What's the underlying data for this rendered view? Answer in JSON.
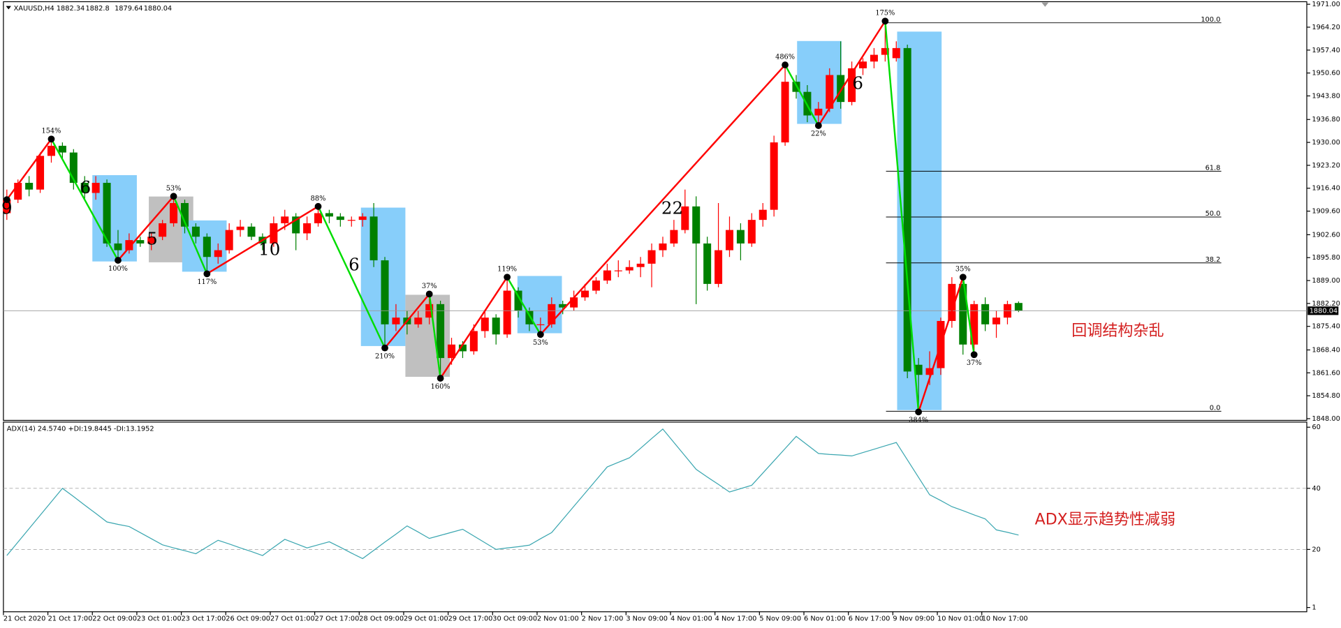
{
  "chart_data": [
    {
      "type": "candlestick",
      "symbol": "XAUUSD,H4",
      "ylim": [
        1848,
        1971
      ],
      "yticks": [
        {
          "value": 1971,
          "label": "1971.00"
        },
        {
          "value": 1964.2,
          "label": "1964.20"
        },
        {
          "value": 1957.4,
          "label": "1957.40"
        },
        {
          "value": 1950.6,
          "label": "1950.60"
        },
        {
          "value": 1943.8,
          "label": "1943.80"
        },
        {
          "value": 1936.8,
          "label": "1936.80"
        },
        {
          "value": 1930,
          "label": "1930.00"
        },
        {
          "value": 1923.2,
          "label": "1923.20"
        },
        {
          "value": 1916.4,
          "label": "1916.40"
        },
        {
          "value": 1909.6,
          "label": "1909.60"
        },
        {
          "value": 1902.6,
          "label": "1902.60"
        },
        {
          "value": 1895.8,
          "label": "1895.80"
        },
        {
          "value": 1889,
          "label": "1889.00"
        },
        {
          "value": 1882.2,
          "label": "1882.20"
        },
        {
          "value": 1875.4,
          "label": "1875.40"
        },
        {
          "value": 1868.4,
          "label": "1868.40"
        },
        {
          "value": 1861.6,
          "label": "1861.60"
        },
        {
          "value": 1854.8,
          "label": "1854.80"
        },
        {
          "value": 1848,
          "label": "1848.00"
        }
      ],
      "up_color": "#ff0000",
      "down_color": "#008000",
      "ohlc": [
        [
          1909,
          1916,
          1907,
          1913
        ],
        [
          1913,
          1919,
          1912,
          1918
        ],
        [
          1918,
          1920,
          1914,
          1916
        ],
        [
          1916,
          1927,
          1915,
          1926
        ],
        [
          1926,
          1931,
          1924,
          1929
        ],
        [
          1929,
          1930,
          1925,
          1927
        ],
        [
          1927,
          1928,
          1916,
          1918
        ],
        [
          1918,
          1920,
          1913,
          1915
        ],
        [
          1915,
          1920,
          1913,
          1918
        ],
        [
          1918,
          1919,
          1899,
          1900
        ],
        [
          1900,
          1904,
          1895,
          1898
        ],
        [
          1898,
          1903,
          1897,
          1901
        ],
        [
          1901,
          1902,
          1899,
          1900
        ],
        [
          1900,
          1903,
          1898,
          1902
        ],
        [
          1902,
          1907,
          1901,
          1906
        ],
        [
          1906,
          1914,
          1905,
          1912
        ],
        [
          1912,
          1913,
          1903,
          1905
        ],
        [
          1905,
          1906,
          1900,
          1902
        ],
        [
          1902,
          1903,
          1891,
          1896
        ],
        [
          1896,
          1900,
          1894,
          1898
        ],
        [
          1898,
          1906,
          1897,
          1904
        ],
        [
          1904,
          1907,
          1902,
          1905
        ],
        [
          1905,
          1906,
          1901,
          1902
        ],
        [
          1902,
          1903,
          1898,
          1900
        ],
        [
          1900,
          1908,
          1899,
          1906
        ],
        [
          1906,
          1910,
          1904,
          1908
        ],
        [
          1908,
          1909,
          1898,
          1903
        ],
        [
          1903,
          1908,
          1901,
          1906
        ],
        [
          1906,
          1911,
          1905,
          1909
        ],
        [
          1909,
          1910,
          1906,
          1908
        ],
        [
          1908,
          1909,
          1905,
          1907
        ],
        [
          1907,
          1908,
          1905,
          1907
        ],
        [
          1907,
          1909,
          1905,
          1908
        ],
        [
          1908,
          1912,
          1893,
          1895
        ],
        [
          1895,
          1896,
          1869,
          1876
        ],
        [
          1876,
          1882,
          1874,
          1878
        ],
        [
          1878,
          1880,
          1873,
          1876
        ],
        [
          1876,
          1880,
          1875,
          1878
        ],
        [
          1878,
          1885,
          1876,
          1882
        ],
        [
          1882,
          1883,
          1860,
          1866
        ],
        [
          1866,
          1872,
          1864,
          1870
        ],
        [
          1870,
          1871,
          1866,
          1868
        ],
        [
          1868,
          1876,
          1867,
          1874
        ],
        [
          1874,
          1880,
          1872,
          1878
        ],
        [
          1878,
          1879,
          1870,
          1873
        ],
        [
          1873,
          1890,
          1872,
          1886
        ],
        [
          1886,
          1887,
          1878,
          1880
        ],
        [
          1880,
          1881,
          1874,
          1876
        ],
        [
          1876,
          1878,
          1873,
          1876
        ],
        [
          1876,
          1884,
          1875,
          1882
        ],
        [
          1882,
          1883,
          1879,
          1881
        ],
        [
          1881,
          1886,
          1880,
          1884
        ],
        [
          1884,
          1888,
          1883,
          1886
        ],
        [
          1886,
          1890,
          1885,
          1889
        ],
        [
          1889,
          1894,
          1888,
          1892
        ],
        [
          1892,
          1895,
          1890,
          1892
        ],
        [
          1892,
          1895,
          1891,
          1893
        ],
        [
          1893,
          1896,
          1890,
          1894
        ],
        [
          1894,
          1900,
          1887,
          1898
        ],
        [
          1898,
          1902,
          1896,
          1900
        ],
        [
          1900,
          1907,
          1899,
          1904
        ],
        [
          1904,
          1916,
          1903,
          1911
        ],
        [
          1911,
          1914,
          1882,
          1900
        ],
        [
          1900,
          1902,
          1886,
          1888
        ],
        [
          1888,
          1912,
          1887,
          1898
        ],
        [
          1898,
          1908,
          1896,
          1904
        ],
        [
          1904,
          1906,
          1895,
          1900
        ],
        [
          1900,
          1909,
          1899,
          1907
        ],
        [
          1907,
          1912,
          1905,
          1910
        ],
        [
          1910,
          1932,
          1908,
          1930
        ],
        [
          1930,
          1953,
          1929,
          1948
        ],
        [
          1948,
          1950,
          1943,
          1945
        ],
        [
          1945,
          1947,
          1936,
          1938
        ],
        [
          1938,
          1942,
          1935,
          1940
        ],
        [
          1940,
          1952,
          1939,
          1950
        ],
        [
          1950,
          1960,
          1940,
          1942
        ],
        [
          1942,
          1954,
          1941,
          1952
        ],
        [
          1952,
          1955,
          1950,
          1954
        ],
        [
          1954,
          1958,
          1952,
          1956
        ],
        [
          1956,
          1966,
          1954,
          1958
        ],
        [
          1955,
          1960,
          1954,
          1958
        ],
        [
          1958,
          1959,
          1860,
          1862
        ],
        [
          1864,
          1866,
          1850,
          1861
        ],
        [
          1861,
          1868,
          1858,
          1863
        ],
        [
          1863,
          1878,
          1861,
          1877
        ],
        [
          1877,
          1890,
          1875,
          1888
        ],
        [
          1888,
          1890,
          1867,
          1870
        ],
        [
          1870,
          1883,
          1867,
          1882
        ],
        [
          1882,
          1884,
          1874,
          1876
        ],
        [
          1876,
          1880,
          1872,
          1878
        ],
        [
          1878,
          1883,
          1876,
          1882
        ],
        [
          1882.34,
          1882.8,
          1879.64,
          1880.04
        ]
      ],
      "zigzag": {
        "points": [
          0,
          4,
          10,
          15,
          18,
          28,
          34,
          38,
          39,
          45,
          48,
          70,
          73,
          79,
          82,
          86,
          87
        ],
        "values": [
          1913,
          1931,
          1895,
          1914,
          1891,
          1911,
          1869,
          1885,
          1860,
          1890,
          1873,
          1953,
          1935,
          1966,
          1850,
          1890,
          1867
        ],
        "labels": [
          null,
          "154%",
          "100%",
          "53%",
          "117%",
          "88%",
          "210%",
          "37%",
          "160%",
          "119%",
          "53%",
          "486%",
          "22%",
          "175%",
          "384%",
          "35%",
          "37%"
        ]
      },
      "fib": {
        "high": 1965.5,
        "low": 1850.2,
        "levels": [
          {
            "value": 100,
            "label": "100.0"
          },
          {
            "value": 61.8,
            "label": "61.8"
          },
          {
            "value": 50,
            "label": "50.0"
          },
          {
            "value": 38.2,
            "label": "38.2"
          },
          {
            "value": 0,
            "label": "0.0"
          }
        ]
      },
      "wave_labels": [
        "9",
        "6",
        "5",
        "10",
        "6",
        "22",
        "6"
      ],
      "annotation": "回调结构杂乱"
    },
    {
      "type": "line",
      "title": "ADX(14) 24.5740 +DI:19.8445 -DI:13.1952",
      "color": "#3aa6b0",
      "ylim": [
        1,
        60
      ],
      "yticks": [
        60,
        40,
        20,
        1
      ],
      "grid": true,
      "categories": [
        "21 Oct 2020",
        null,
        null,
        null,
        "21 Oct 17:00",
        null,
        null,
        null,
        "22 Oct 09:00",
        null,
        null,
        null,
        "23 Oct 01:00",
        null,
        null,
        null,
        "23 Oct 17:00",
        null,
        null,
        null,
        "26 Oct 09:00",
        null,
        null,
        null,
        "27 Oct 01:00",
        null,
        null,
        null,
        "27 Oct 17:00",
        null,
        null,
        null,
        "28 Oct 09:00",
        null,
        null,
        null,
        "29 Oct 01:00",
        null,
        null,
        null,
        "29 Oct 17:00",
        null,
        null,
        null,
        "30 Oct 09:00",
        null,
        null,
        null,
        "2 Nov 01:00",
        null,
        null,
        null,
        "2 Nov 17:00",
        null,
        null,
        null,
        "3 Nov 09:00",
        null,
        null,
        null,
        "4 Nov 01:00",
        null,
        null,
        null,
        "4 Nov 17:00",
        null,
        null,
        null,
        "5 Nov 09:00",
        null,
        null,
        null,
        "6 Nov 01:00",
        null,
        null,
        null,
        "6 Nov 17:00",
        null,
        null,
        null,
        "9 Nov 09:00",
        null,
        null,
        null,
        "10 Nov 01:00",
        null,
        null,
        null,
        "10 Nov 17:00",
        null,
        null,
        null
      ],
      "values": [
        18,
        22.4,
        26.8,
        31.2,
        35.6,
        40,
        37.3,
        34.5,
        31.8,
        29,
        28.2,
        27.5,
        25.5,
        23.5,
        21.5,
        20.5,
        19.6,
        18.6,
        20.8,
        23,
        21.8,
        20.5,
        19.3,
        18,
        20.7,
        23.3,
        21.9,
        20.5,
        21.5,
        22.5,
        20.7,
        18.8,
        17,
        19.7,
        22.4,
        25,
        27.7,
        25.7,
        23.6,
        24.6,
        25.6,
        26.6,
        24.4,
        22.2,
        20,
        20.5,
        20.9,
        21.4,
        23.5,
        25.5,
        29.8,
        34.1,
        38.4,
        42.7,
        47,
        48.5,
        50,
        53.1,
        56.3,
        59.4,
        55,
        50.6,
        46.2,
        43.7,
        41.3,
        38.8,
        39.9,
        41,
        45,
        49,
        53,
        57,
        54.2,
        51.4,
        51.1,
        50.9,
        50.6,
        51.7,
        52.8,
        53.9,
        55,
        49.3,
        43.6,
        37.9,
        36,
        34,
        32.7,
        31.3,
        30,
        26.4,
        25.6,
        24.7
      ],
      "annotation": "ADX显示趋势性减弱"
    }
  ]
}
